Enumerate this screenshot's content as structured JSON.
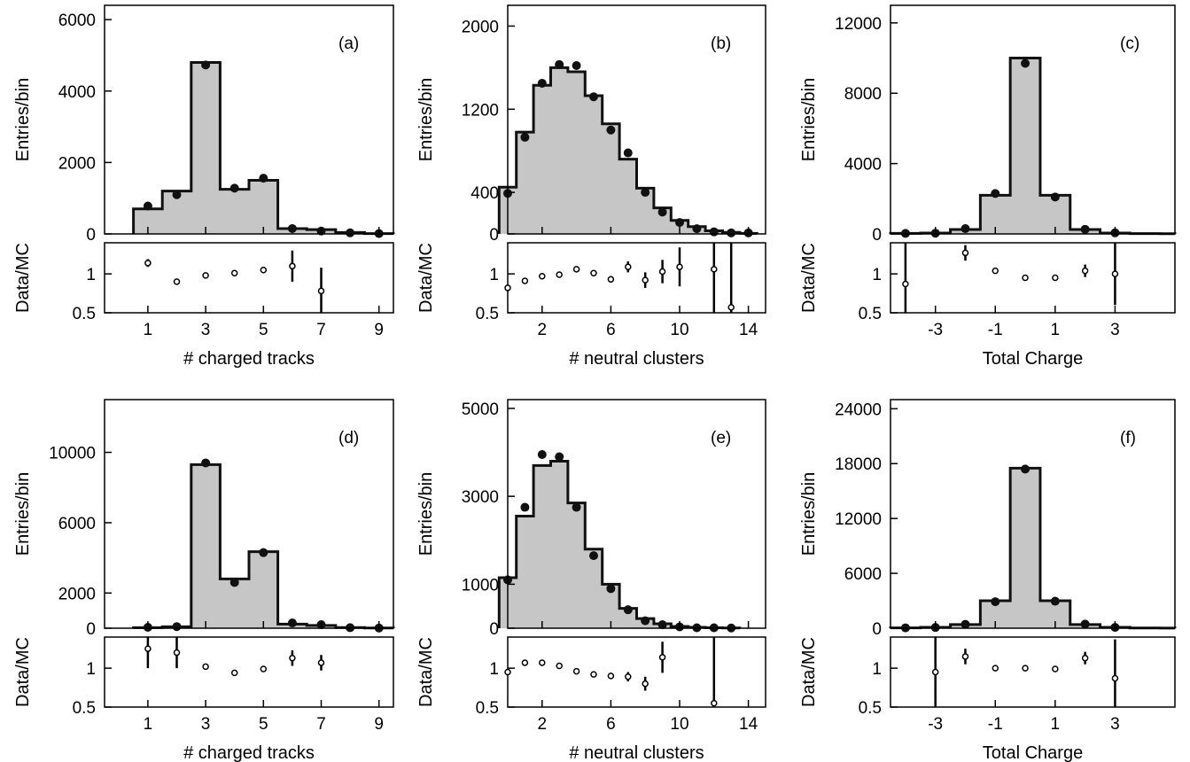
{
  "colors": {
    "fill": "#c6c6c6",
    "line": "#111111",
    "marker": "#111111"
  },
  "ratio_axis": {
    "ylabel": "Data/MC",
    "ticks": [
      "0.5",
      "1"
    ]
  },
  "chart_data": [
    {
      "type": "bar",
      "panel_label": "(a)",
      "xlabel": "# charged tracks",
      "ylabel": "Entries/bin",
      "xlim": [
        -0.5,
        9.5
      ],
      "ylim": [
        0,
        6400
      ],
      "yticks": [
        0,
        2000,
        4000,
        6000
      ],
      "xticks": [
        1,
        3,
        5,
        7,
        9
      ],
      "mc_bins": [
        [
          0.5,
          1.5,
          700
        ],
        [
          1.5,
          2.5,
          1200
        ],
        [
          2.5,
          3.5,
          4800
        ],
        [
          3.5,
          4.5,
          1250
        ],
        [
          4.5,
          5.5,
          1500
        ],
        [
          5.5,
          6.5,
          150
        ],
        [
          6.5,
          7.5,
          120
        ],
        [
          7.5,
          8.5,
          40
        ],
        [
          8.5,
          9.5,
          10
        ]
      ],
      "data": [
        [
          1,
          780
        ],
        [
          2,
          1100
        ],
        [
          3,
          4730
        ],
        [
          4,
          1280
        ],
        [
          5,
          1560
        ],
        [
          6,
          150
        ],
        [
          7,
          80
        ],
        [
          8,
          30
        ],
        [
          9,
          10
        ]
      ],
      "ratio": [
        [
          1,
          1.14,
          0.05
        ],
        [
          2,
          0.9,
          0.03
        ],
        [
          3,
          0.98,
          0.02
        ],
        [
          4,
          1.01,
          0.03
        ],
        [
          5,
          1.05,
          0.03
        ],
        [
          6,
          1.1,
          0.2
        ],
        [
          7,
          0.78,
          0.3
        ]
      ],
      "ratio_ylim": [
        0.5,
        1.4
      ]
    },
    {
      "type": "bar",
      "panel_label": "(b)",
      "xlabel": "# neutral clusters",
      "ylabel": "Entries/bin",
      "xlim": [
        0,
        15
      ],
      "ylim": [
        0,
        2200
      ],
      "yticks": [
        0,
        400,
        1200,
        2000
      ],
      "xticks": [
        2,
        6,
        10,
        14
      ],
      "mc_bins": [
        [
          -0.5,
          0.5,
          450
        ],
        [
          0.5,
          1.5,
          980
        ],
        [
          1.5,
          2.5,
          1430
        ],
        [
          2.5,
          3.5,
          1600
        ],
        [
          3.5,
          4.5,
          1560
        ],
        [
          4.5,
          5.5,
          1330
        ],
        [
          5.5,
          6.5,
          1060
        ],
        [
          6.5,
          7.5,
          720
        ],
        [
          7.5,
          8.5,
          440
        ],
        [
          8.5,
          9.5,
          250
        ],
        [
          9.5,
          10.5,
          130
        ],
        [
          10.5,
          11.5,
          70
        ],
        [
          11.5,
          12.5,
          30
        ],
        [
          12.5,
          13.5,
          15
        ],
        [
          13.5,
          14.5,
          5
        ]
      ],
      "data": [
        [
          0,
          390
        ],
        [
          1,
          930
        ],
        [
          2,
          1450
        ],
        [
          3,
          1630
        ],
        [
          4,
          1620
        ],
        [
          5,
          1320
        ],
        [
          6,
          1000
        ],
        [
          7,
          780
        ],
        [
          8,
          400
        ],
        [
          9,
          210
        ],
        [
          10,
          110
        ],
        [
          11,
          50
        ],
        [
          12,
          20
        ],
        [
          13,
          10
        ],
        [
          14,
          10
        ]
      ],
      "ratio": [
        [
          0,
          0.82,
          0.04
        ],
        [
          1,
          0.91,
          0.03
        ],
        [
          2,
          0.97,
          0.03
        ],
        [
          3,
          0.99,
          0.03
        ],
        [
          4,
          1.06,
          0.03
        ],
        [
          5,
          1.01,
          0.03
        ],
        [
          6,
          0.93,
          0.04
        ],
        [
          7,
          1.09,
          0.07
        ],
        [
          8,
          0.92,
          0.1
        ],
        [
          9,
          1.03,
          0.15
        ],
        [
          10,
          1.09,
          0.25
        ],
        [
          12,
          1.06,
          0.7
        ],
        [
          13,
          0.57,
          0.9
        ]
      ],
      "ratio_ylim": [
        0.5,
        1.4
      ]
    },
    {
      "type": "bar",
      "panel_label": "(c)",
      "xlabel": "Total Charge",
      "ylabel": "Entries/bin",
      "xlim": [
        -4.5,
        5
      ],
      "ylim": [
        0,
        13000
      ],
      "yticks": [
        0,
        4000,
        8000,
        12000
      ],
      "xticks": [
        -3,
        -1,
        1,
        3
      ],
      "mc_bins": [
        [
          -4.5,
          -3.5,
          30
        ],
        [
          -3.5,
          -2.5,
          50
        ],
        [
          -2.5,
          -1.5,
          250
        ],
        [
          -1.5,
          -0.5,
          2200
        ],
        [
          -0.5,
          0.5,
          10000
        ],
        [
          0.5,
          1.5,
          2200
        ],
        [
          1.5,
          2.5,
          250
        ],
        [
          2.5,
          3.5,
          50
        ],
        [
          3.5,
          4.5,
          20
        ],
        [
          4.5,
          5,
          10
        ]
      ],
      "data": [
        [
          -4,
          30
        ],
        [
          -3,
          40
        ],
        [
          -2,
          300
        ],
        [
          -1,
          2300
        ],
        [
          0,
          9700
        ],
        [
          1,
          2100
        ],
        [
          2,
          260
        ],
        [
          3,
          60
        ]
      ],
      "ratio": [
        [
          -4,
          0.87,
          0.7
        ],
        [
          -2,
          1.27,
          0.1
        ],
        [
          -1,
          1.04,
          0.03
        ],
        [
          0,
          0.95,
          0.02
        ],
        [
          1,
          0.95,
          0.03
        ],
        [
          2,
          1.04,
          0.08
        ],
        [
          3,
          1.0,
          0.4
        ]
      ],
      "ratio_ylim": [
        0.5,
        1.4
      ]
    },
    {
      "type": "bar",
      "panel_label": "(d)",
      "xlabel": "# charged tracks",
      "ylabel": "Entries/bin",
      "xlim": [
        -0.5,
        9.5
      ],
      "ylim": [
        0,
        13000
      ],
      "yticks": [
        0,
        2000,
        6000,
        10000
      ],
      "xticks": [
        1,
        3,
        5,
        7,
        9
      ],
      "mc_bins": [
        [
          0.5,
          1.5,
          30
        ],
        [
          1.5,
          2.5,
          80
        ],
        [
          2.5,
          3.5,
          9300
        ],
        [
          3.5,
          4.5,
          2800
        ],
        [
          4.5,
          5.5,
          4350
        ],
        [
          5.5,
          6.5,
          230
        ],
        [
          6.5,
          7.5,
          160
        ],
        [
          7.5,
          8.5,
          40
        ],
        [
          8.5,
          9.5,
          10
        ]
      ],
      "data": [
        [
          1,
          50
        ],
        [
          2,
          90
        ],
        [
          3,
          9400
        ],
        [
          4,
          2600
        ],
        [
          5,
          4300
        ],
        [
          6,
          300
        ],
        [
          7,
          200
        ],
        [
          8,
          30
        ],
        [
          9,
          10
        ]
      ],
      "ratio": [
        [
          1,
          1.25,
          0.25
        ],
        [
          2,
          1.2,
          0.2
        ],
        [
          3,
          1.02,
          0.02
        ],
        [
          4,
          0.94,
          0.03
        ],
        [
          5,
          0.99,
          0.02
        ],
        [
          6,
          1.13,
          0.1
        ],
        [
          7,
          1.07,
          0.1
        ]
      ],
      "ratio_ylim": [
        0.5,
        1.4
      ]
    },
    {
      "type": "bar",
      "panel_label": "(e)",
      "xlabel": "# neutral clusters",
      "ylabel": "Entries/bin",
      "xlim": [
        0,
        15
      ],
      "ylim": [
        0,
        5200
      ],
      "yticks": [
        0,
        1000,
        3000,
        5000
      ],
      "xticks": [
        2,
        6,
        10,
        14
      ],
      "mc_bins": [
        [
          -0.5,
          0.5,
          1150
        ],
        [
          0.5,
          1.5,
          2550
        ],
        [
          1.5,
          2.5,
          3700
        ],
        [
          2.5,
          3.5,
          3800
        ],
        [
          3.5,
          4.5,
          2850
        ],
        [
          4.5,
          5.5,
          1800
        ],
        [
          5.5,
          6.5,
          1000
        ],
        [
          6.5,
          7.5,
          450
        ],
        [
          7.5,
          8.5,
          220
        ],
        [
          8.5,
          9.5,
          100
        ],
        [
          9.5,
          10.5,
          40
        ],
        [
          10.5,
          11.5,
          20
        ],
        [
          11.5,
          12.5,
          10
        ],
        [
          12.5,
          13.5,
          5
        ]
      ],
      "data": [
        [
          0,
          1100
        ],
        [
          1,
          2750
        ],
        [
          2,
          3950
        ],
        [
          3,
          3900
        ],
        [
          4,
          2750
        ],
        [
          5,
          1650
        ],
        [
          6,
          900
        ],
        [
          7,
          420
        ],
        [
          8,
          170
        ],
        [
          9,
          80
        ],
        [
          10,
          30
        ],
        [
          11,
          10
        ],
        [
          12,
          10
        ],
        [
          13,
          5
        ]
      ],
      "ratio": [
        [
          0,
          0.95,
          0.03
        ],
        [
          1,
          1.07,
          0.03
        ],
        [
          2,
          1.07,
          0.02
        ],
        [
          3,
          1.03,
          0.02
        ],
        [
          4,
          0.96,
          0.03
        ],
        [
          5,
          0.92,
          0.03
        ],
        [
          6,
          0.9,
          0.04
        ],
        [
          7,
          0.89,
          0.06
        ],
        [
          8,
          0.8,
          0.09
        ],
        [
          9,
          1.14,
          0.2
        ],
        [
          12,
          0.55,
          1.0
        ]
      ],
      "ratio_ylim": [
        0.5,
        1.4
      ]
    },
    {
      "type": "bar",
      "panel_label": "(f)",
      "xlabel": "Total Charge",
      "ylabel": "Entries/bin",
      "xlim": [
        -4.5,
        5
      ],
      "ylim": [
        0,
        25000
      ],
      "yticks": [
        0,
        6000,
        12000,
        18000,
        24000
      ],
      "xticks": [
        -3,
        -1,
        1,
        3
      ],
      "mc_bins": [
        [
          -4.5,
          -3.5,
          40
        ],
        [
          -3.5,
          -2.5,
          100
        ],
        [
          -2.5,
          -1.5,
          400
        ],
        [
          -1.5,
          -0.5,
          3000
        ],
        [
          -0.5,
          0.5,
          17500
        ],
        [
          0.5,
          1.5,
          3000
        ],
        [
          1.5,
          2.5,
          400
        ],
        [
          2.5,
          3.5,
          100
        ],
        [
          3.5,
          4.5,
          30
        ],
        [
          4.5,
          5,
          10
        ]
      ],
      "data": [
        [
          -4,
          40
        ],
        [
          -3,
          80
        ],
        [
          -2,
          420
        ],
        [
          -1,
          2900
        ],
        [
          0,
          17400
        ],
        [
          1,
          2950
        ],
        [
          2,
          450
        ],
        [
          3,
          90
        ]
      ],
      "ratio": [
        [
          -3,
          0.95,
          0.5
        ],
        [
          -2,
          1.15,
          0.1
        ],
        [
          -1,
          1.0,
          0.02
        ],
        [
          0,
          1.0,
          0.01
        ],
        [
          1,
          0.99,
          0.02
        ],
        [
          2,
          1.13,
          0.08
        ],
        [
          3,
          0.87,
          0.5
        ]
      ],
      "ratio_ylim": [
        0.5,
        1.4
      ]
    }
  ]
}
